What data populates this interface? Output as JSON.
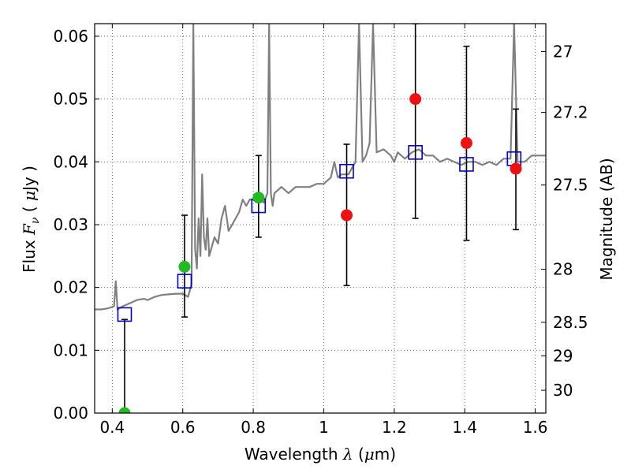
{
  "chart_data": {
    "type": "scatter",
    "xlabel_prefix": "Wavelength",
    "xlabel_symbol": "λ",
    "xlabel_unit_open": "(",
    "xlabel_unit_mu": "μ",
    "xlabel_unit_rest": "m)",
    "ylabel_prefix": "Flux",
    "ylabel_symbol": "F",
    "ylabel_sub": "ν",
    "ylabel_unit_open": "(",
    "ylabel_unit_mu": "μ",
    "ylabel_unit_rest": "Jy )",
    "y2label": "Magnitude (AB)",
    "xlim": [
      0.35,
      1.63
    ],
    "ylim": [
      0.0,
      0.062
    ],
    "grid": true,
    "x_ticks": [
      0.4,
      0.6,
      0.8,
      1.0,
      1.2,
      1.4,
      1.6
    ],
    "x_tick_labels": [
      "0.4",
      "0.6",
      "0.8",
      "1",
      "1.2",
      "1.4",
      "1.6"
    ],
    "y_ticks": [
      0.0,
      0.01,
      0.02,
      0.03,
      0.04,
      0.05,
      0.06
    ],
    "y_tick_labels": [
      "0.00",
      "0.01",
      "0.02",
      "0.03",
      "0.04",
      "0.05",
      "0.06"
    ],
    "mag_ticks": [
      {
        "mag": 27,
        "label": "27"
      },
      {
        "mag": 27.2,
        "label": "27.2"
      },
      {
        "mag": 27.5,
        "label": "27.5"
      },
      {
        "mag": 28,
        "label": "28"
      },
      {
        "mag": 28.5,
        "label": "28.5"
      },
      {
        "mag": 29,
        "label": "29"
      },
      {
        "mag": 30,
        "label": "30"
      }
    ],
    "series": [
      {
        "marker": "spectrum-line",
        "color": "#808080",
        "x": [
          0.35,
          0.37,
          0.39,
          0.405,
          0.41,
          0.415,
          0.43,
          0.45,
          0.47,
          0.49,
          0.5,
          0.52,
          0.54,
          0.56,
          0.58,
          0.6,
          0.615,
          0.625,
          0.63,
          0.635,
          0.64,
          0.645,
          0.65,
          0.655,
          0.66,
          0.665,
          0.67,
          0.675,
          0.68,
          0.69,
          0.7,
          0.71,
          0.72,
          0.73,
          0.74,
          0.75,
          0.76,
          0.77,
          0.78,
          0.79,
          0.8,
          0.81,
          0.82,
          0.83,
          0.84,
          0.845,
          0.85,
          0.855,
          0.86,
          0.88,
          0.9,
          0.92,
          0.94,
          0.96,
          0.98,
          1.0,
          1.02,
          1.03,
          1.04,
          1.05,
          1.07,
          1.08,
          1.09,
          1.1,
          1.11,
          1.12,
          1.13,
          1.14,
          1.15,
          1.17,
          1.19,
          1.2,
          1.21,
          1.22,
          1.23,
          1.25,
          1.27,
          1.29,
          1.31,
          1.33,
          1.35,
          1.37,
          1.39,
          1.41,
          1.43,
          1.45,
          1.47,
          1.49,
          1.51,
          1.53,
          1.54,
          1.55,
          1.57,
          1.59,
          1.61,
          1.63
        ],
        "y": [
          0.0165,
          0.0165,
          0.0167,
          0.017,
          0.021,
          0.0165,
          0.017,
          0.0175,
          0.018,
          0.0182,
          0.018,
          0.0185,
          0.0188,
          0.0189,
          0.019,
          0.019,
          0.0185,
          0.0205,
          0.062,
          0.026,
          0.023,
          0.031,
          0.025,
          0.038,
          0.028,
          0.026,
          0.031,
          0.025,
          0.026,
          0.028,
          0.027,
          0.031,
          0.033,
          0.029,
          0.03,
          0.031,
          0.032,
          0.034,
          0.033,
          0.034,
          0.034,
          0.0345,
          0.034,
          0.0335,
          0.035,
          0.062,
          0.035,
          0.033,
          0.035,
          0.036,
          0.035,
          0.036,
          0.036,
          0.036,
          0.0365,
          0.0365,
          0.0375,
          0.04,
          0.0375,
          0.038,
          0.038,
          0.039,
          0.04,
          0.062,
          0.04,
          0.041,
          0.043,
          0.062,
          0.0415,
          0.042,
          0.041,
          0.04,
          0.0415,
          0.041,
          0.0405,
          0.0415,
          0.042,
          0.041,
          0.041,
          0.04,
          0.0405,
          0.04,
          0.0395,
          0.04,
          0.04,
          0.0395,
          0.04,
          0.0395,
          0.0405,
          0.0405,
          0.062,
          0.04,
          0.04,
          0.041,
          0.041,
          0.041
        ]
      },
      {
        "marker": "open-square",
        "color": "#0000cc",
        "x": [
          0.435,
          0.605,
          0.815,
          1.065,
          1.26,
          1.405,
          1.54
        ],
        "y": [
          0.0157,
          0.021,
          0.033,
          0.0385,
          0.0415,
          0.0396,
          0.0405
        ]
      },
      {
        "marker": "filled-circle",
        "color": "#22bb22",
        "x": [
          0.435,
          0.605,
          0.815
        ],
        "y": [
          0.0,
          0.0233,
          0.0343
        ],
        "yerr_low": [
          0.0,
          0.0153,
          0.028
        ],
        "yerr_high": [
          0.0149,
          0.0315,
          0.041
        ]
      },
      {
        "marker": "filled-circle",
        "color": "#ee1111",
        "x": [
          1.065,
          1.26,
          1.405,
          1.545
        ],
        "y": [
          0.0315,
          0.05,
          0.043,
          0.0389
        ],
        "yerr_low": [
          0.0203,
          0.031,
          0.0275,
          0.0292
        ],
        "yerr_high": [
          0.0428,
          0.062,
          0.0584,
          0.0484
        ]
      }
    ]
  }
}
